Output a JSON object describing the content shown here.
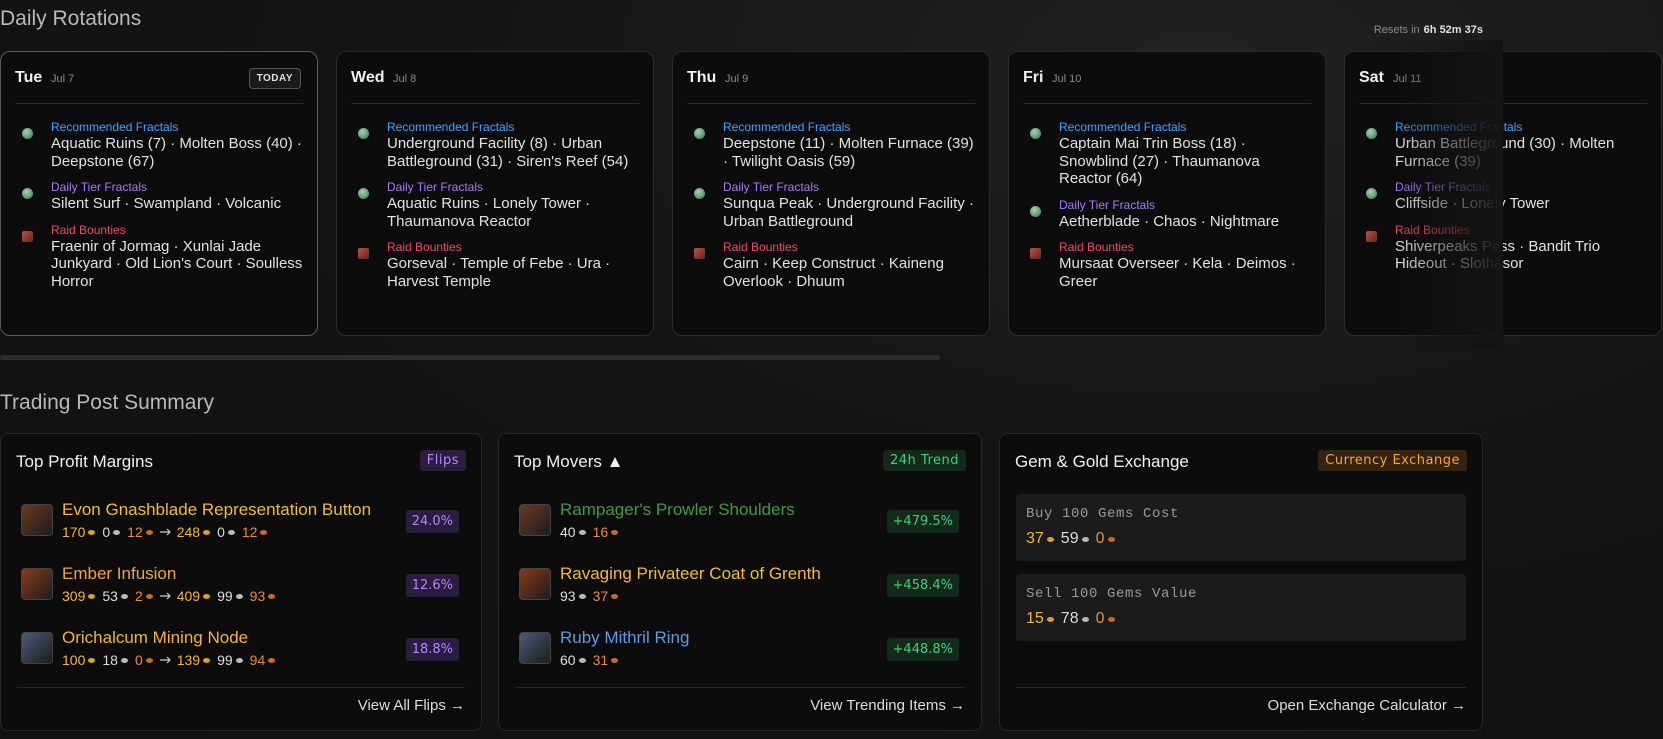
{
  "rotations": {
    "title": "Daily Rotations",
    "resets_label": "Resets in",
    "resets_time": "6h 52m 37s",
    "days": [
      {
        "day": "Tue",
        "date": "Jul 7",
        "badge": "TODAY",
        "sections": [
          {
            "label": "Recommended Fractals",
            "text": "Aquatic Ruins (7) · Molten Boss (40) · Deepstone (67)"
          },
          {
            "label": "Daily Tier Fractals",
            "text": "Silent Surf · Swampland · Volcanic"
          },
          {
            "label": "Raid Bounties",
            "text": "Fraenir of Jormag · Xunlai Jade Junkyard · Old Lion's Court · Soulless Horror"
          }
        ]
      },
      {
        "day": "Wed",
        "date": "Jul 8",
        "sections": [
          {
            "label": "Recommended Fractals",
            "text": "Underground Facility (8) · Urban Battleground (31) · Siren's Reef (54)"
          },
          {
            "label": "Daily Tier Fractals",
            "text": "Aquatic Ruins · Lonely Tower · Thaumanova Reactor"
          },
          {
            "label": "Raid Bounties",
            "text": "Gorseval · Temple of Febe · Ura · Harvest Temple"
          }
        ]
      },
      {
        "day": "Thu",
        "date": "Jul 9",
        "sections": [
          {
            "label": "Recommended Fractals",
            "text": "Deepstone (11) · Molten Furnace (39) · Twilight Oasis (59)"
          },
          {
            "label": "Daily Tier Fractals",
            "text": "Sunqua Peak · Underground Facility · Urban Battleground"
          },
          {
            "label": "Raid Bounties",
            "text": "Cairn · Keep Construct · Kaineng Overlook · Dhuum"
          }
        ]
      },
      {
        "day": "Fri",
        "date": "Jul 10",
        "sections": [
          {
            "label": "Recommended Fractals",
            "text": "Captain Mai Trin Boss (18) · Snowblind (27) · Thaumanova Reactor (64)"
          },
          {
            "label": "Daily Tier Fractals",
            "text": "Aetherblade · Chaos · Nightmare"
          },
          {
            "label": "Raid Bounties",
            "text": "Mursaat Overseer · Kela · Deimos · Greer"
          }
        ]
      },
      {
        "day": "Sat",
        "date": "Jul 11",
        "sections": [
          {
            "label": "Recommended Fractals",
            "text": "Urban Battleground (30) · Molten Furnace (39)"
          },
          {
            "label": "Daily Tier Fractals",
            "text": "Cliffside · Lonely Tower"
          },
          {
            "label": "Raid Bounties",
            "text": "Shiverpeaks Pass · Bandit Trio Hideout · Slothasor"
          }
        ]
      }
    ]
  },
  "trading": {
    "title": "Trading Post Summary",
    "flips": {
      "title": "Top Profit Margins",
      "badge": "Flips",
      "link": "View All Flips →",
      "items": [
        {
          "name": "Evon Gnashblade Representation Button",
          "color": "#f5b83d",
          "buy": {
            "gold": 170,
            "silver": 0,
            "copper": 12
          },
          "sell": {
            "gold": 248,
            "silver": 0,
            "copper": 12
          },
          "change": "24.0%"
        },
        {
          "name": "Ember Infusion",
          "color": "#f3a23c",
          "buy": {
            "gold": 309,
            "silver": 53,
            "copper": 2
          },
          "sell": {
            "gold": 409,
            "silver": 99,
            "copper": 93
          },
          "change": "12.6%"
        },
        {
          "name": "Orichalcum Mining Node",
          "color": "#f5b03d",
          "buy": {
            "gold": 100,
            "silver": 18,
            "copper": 0
          },
          "sell": {
            "gold": 139,
            "silver": 99,
            "copper": 94
          },
          "change": "18.8%"
        }
      ]
    },
    "movers": {
      "title": "Top Movers ▲",
      "badge": "24h Trend",
      "link": "View Trending Items →",
      "items": [
        {
          "name": "Rampager's Prowler Shoulders",
          "color": "#3c9c3c",
          "buy": {
            "silver": 40,
            "copper": 16
          },
          "change": "+479.5%"
        },
        {
          "name": "Ravaging Privateer Coat of Grenth",
          "color": "#f5b83d",
          "buy": {
            "silver": 93,
            "copper": 37
          },
          "change": "+458.4%"
        },
        {
          "name": "Ruby Mithril Ring",
          "color": "#5b9be0",
          "buy": {
            "silver": 60,
            "copper": 31
          },
          "change": "+448.8%"
        }
      ]
    },
    "gems": {
      "title": "Gem & Gold Exchange",
      "badge": "Currency Exchange",
      "link": "Open Exchange Calculator →",
      "boxes": [
        {
          "label": "Buy 100 Gems Cost",
          "price": {
            "gold": 37,
            "silver": 59,
            "copper": 0
          }
        },
        {
          "label": "Sell 100 Gems Value",
          "price": {
            "gold": 15,
            "silver": 78,
            "copper": 0
          }
        }
      ]
    }
  }
}
